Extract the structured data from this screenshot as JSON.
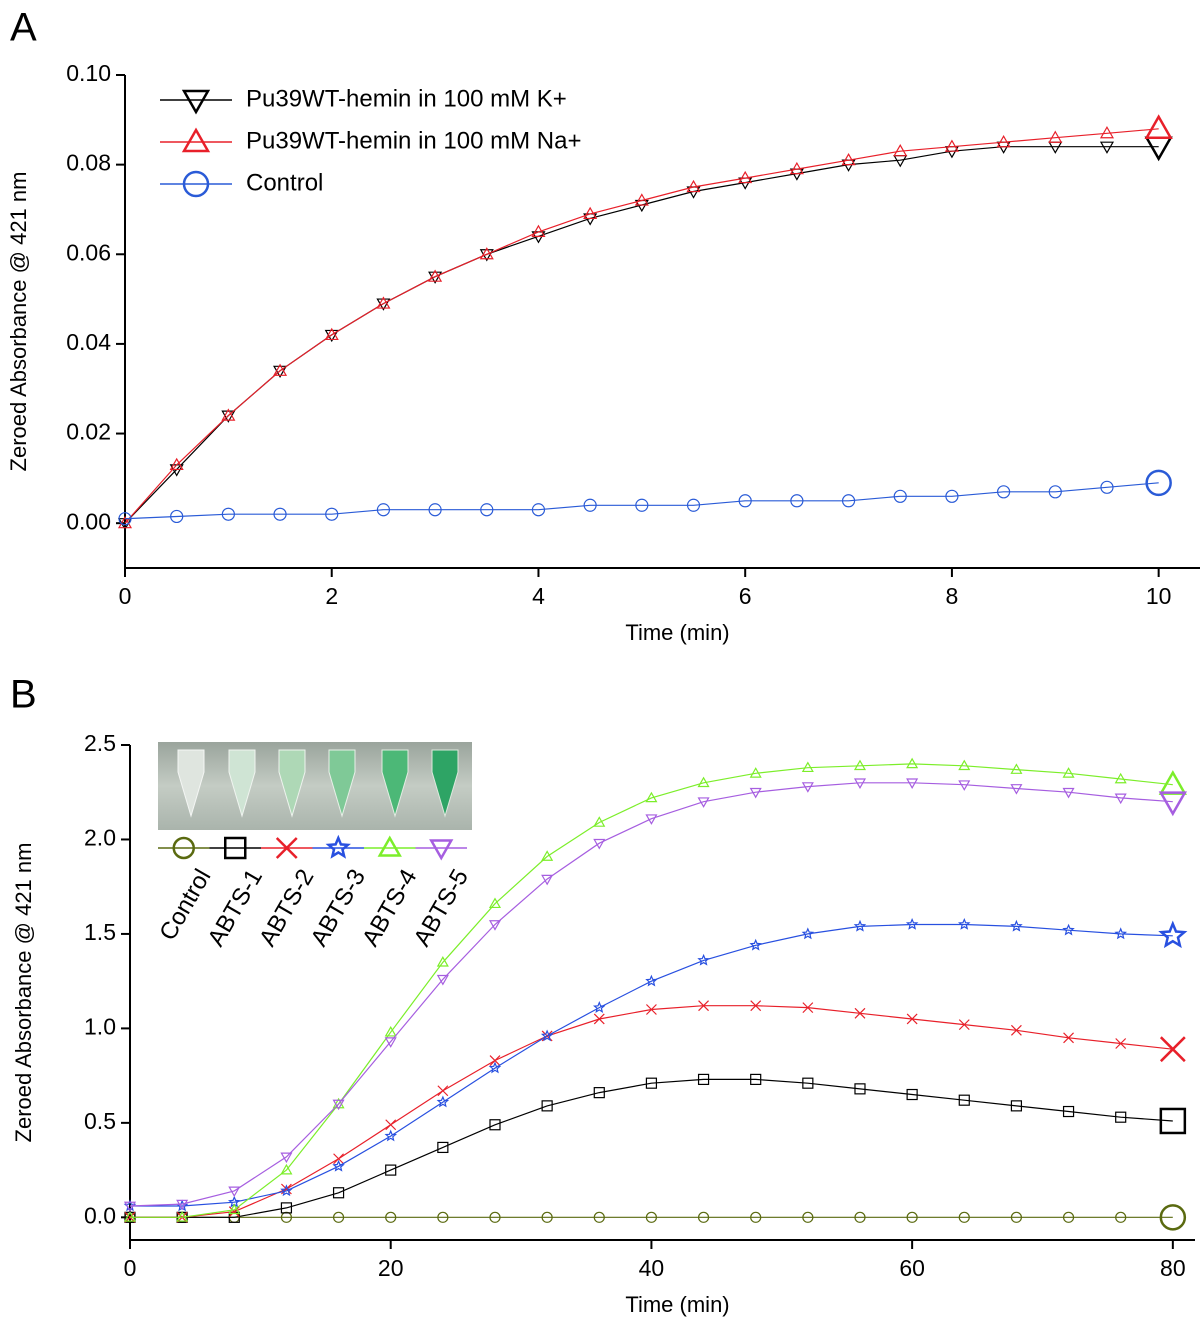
{
  "chart_data": [
    {
      "type": "line",
      "panel_label": "A",
      "x_label": "Time (min)",
      "y_label": "Zeroed Absorbance @ 421 nm",
      "xlim": [
        0,
        10.4
      ],
      "ylim": [
        -0.01,
        0.1
      ],
      "xticks": [
        0,
        2,
        4,
        6,
        8,
        10
      ],
      "yticks": [
        {
          "value": 0,
          "label": "0.00"
        },
        {
          "value": 0.02,
          "label": "0.02"
        },
        {
          "value": 0.04,
          "label": "0.04"
        },
        {
          "value": 0.06,
          "label": "0.06"
        },
        {
          "value": 0.08,
          "label": "0.08"
        },
        {
          "value": 0.1,
          "label": "0.10"
        }
      ],
      "legend": "upper left",
      "x": [
        0,
        0.5,
        1,
        1.5,
        2,
        2.5,
        3,
        3.5,
        4,
        4.5,
        5,
        5.5,
        6,
        6.5,
        7,
        7.5,
        8,
        8.5,
        9,
        9.5,
        10
      ],
      "series": [
        {
          "name": "Pu39WT-hemin in 100 mM K+",
          "color": "#000000",
          "marker": "triangle-down",
          "values": [
            0,
            0.012,
            0.024,
            0.034,
            0.042,
            0.049,
            0.055,
            0.06,
            0.064,
            0.068,
            0.071,
            0.074,
            0.076,
            0.078,
            0.08,
            0.081,
            0.083,
            0.084,
            0.084,
            0.084,
            0.084
          ]
        },
        {
          "name": "Pu39WT-hemin in 100 mM Na+",
          "color": "#e8202a",
          "marker": "triangle-up",
          "values": [
            0,
            0.013,
            0.024,
            0.034,
            0.042,
            0.049,
            0.055,
            0.06,
            0.065,
            0.069,
            0.072,
            0.075,
            0.077,
            0.079,
            0.081,
            0.083,
            0.084,
            0.085,
            0.086,
            0.087,
            0.088
          ]
        },
        {
          "name": "Control",
          "color": "#2a5bd7",
          "marker": "circle",
          "values": [
            0.001,
            0.0015,
            0.002,
            0.002,
            0.002,
            0.003,
            0.003,
            0.003,
            0.003,
            0.004,
            0.004,
            0.004,
            0.005,
            0.005,
            0.005,
            0.006,
            0.006,
            0.007,
            0.007,
            0.008,
            0.009
          ]
        }
      ]
    },
    {
      "type": "line",
      "panel_label": "B",
      "x_label": "Time (min)",
      "y_label": "Zeroed Absorbance @ 421 nm",
      "xlim": [
        0,
        81.7
      ],
      "ylim": [
        -0.12,
        2.5
      ],
      "xticks": [
        0,
        20,
        40,
        60,
        80
      ],
      "yticks": [
        {
          "value": 0,
          "label": "0.0"
        },
        0.5,
        {
          "value": 1,
          "label": "1.0"
        },
        1.5,
        {
          "value": 2,
          "label": "2.0"
        },
        2.5
      ],
      "legend": "upper left",
      "x": [
        0,
        4,
        8,
        12,
        16,
        20,
        24,
        28,
        32,
        36,
        40,
        44,
        48,
        52,
        56,
        60,
        64,
        68,
        72,
        76,
        80
      ],
      "series": [
        {
          "name": "Control",
          "color": "#5a6a10",
          "marker": "circle",
          "values": [
            0,
            0,
            0,
            0,
            0,
            0,
            0,
            0,
            0,
            0,
            0,
            0,
            0,
            0,
            0,
            0,
            0,
            0,
            0,
            0,
            0
          ]
        },
        {
          "name": "ABTS-1",
          "color": "#000000",
          "marker": "square",
          "values": [
            0,
            0,
            0,
            0.05,
            0.13,
            0.25,
            0.37,
            0.49,
            0.59,
            0.66,
            0.71,
            0.73,
            0.73,
            0.71,
            0.68,
            0.65,
            0.62,
            0.59,
            0.56,
            0.53,
            0.51
          ]
        },
        {
          "name": "ABTS-2",
          "color": "#e8202a",
          "marker": "x",
          "values": [
            0,
            0,
            0.03,
            0.15,
            0.31,
            0.49,
            0.67,
            0.83,
            0.96,
            1.05,
            1.1,
            1.12,
            1.12,
            1.11,
            1.08,
            1.05,
            1.02,
            0.99,
            0.95,
            0.92,
            0.89
          ]
        },
        {
          "name": "ABTS-3",
          "color": "#2850e0",
          "marker": "star",
          "values": [
            0.06,
            0.06,
            0.08,
            0.14,
            0.27,
            0.43,
            0.61,
            0.79,
            0.96,
            1.11,
            1.25,
            1.36,
            1.44,
            1.5,
            1.54,
            1.55,
            1.55,
            1.54,
            1.52,
            1.5,
            1.49
          ]
        },
        {
          "name": "ABTS-4",
          "color": "#7cee2a",
          "marker": "triangle-up",
          "values": [
            0,
            0,
            0.04,
            0.25,
            0.6,
            0.98,
            1.35,
            1.66,
            1.91,
            2.09,
            2.22,
            2.3,
            2.35,
            2.38,
            2.39,
            2.4,
            2.39,
            2.37,
            2.35,
            2.32,
            2.29
          ]
        },
        {
          "name": "ABTS-5",
          "color": "#a65ee0",
          "marker": "triangle-down",
          "values": [
            0.06,
            0.07,
            0.14,
            0.32,
            0.6,
            0.93,
            1.26,
            1.55,
            1.79,
            1.98,
            2.11,
            2.2,
            2.25,
            2.28,
            2.3,
            2.3,
            2.29,
            2.27,
            2.25,
            2.22,
            2.2
          ]
        }
      ]
    }
  ]
}
